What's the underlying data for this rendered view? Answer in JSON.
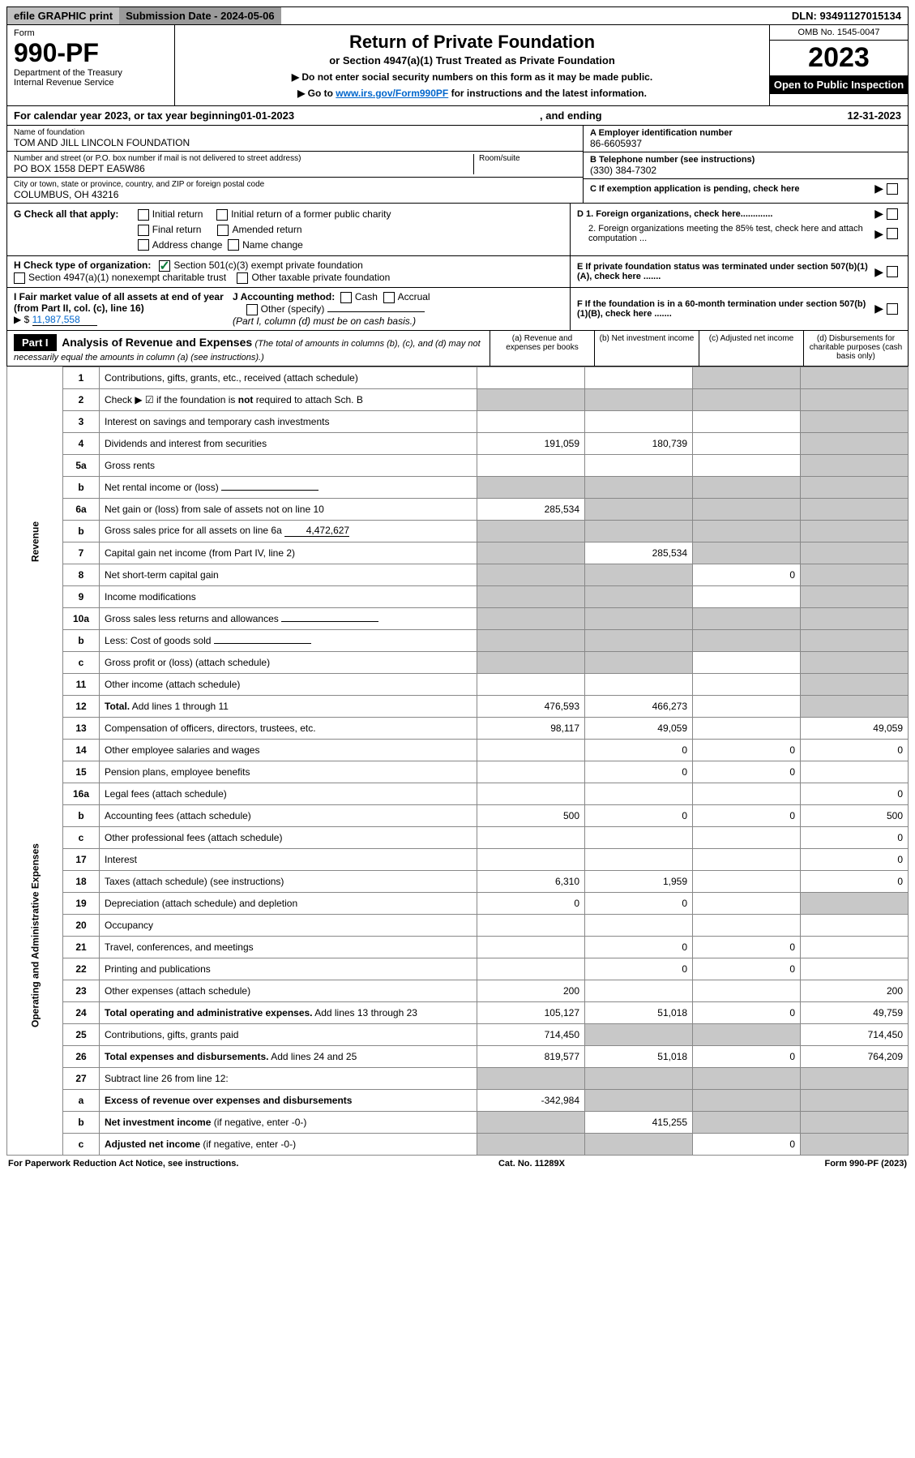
{
  "top": {
    "efile": "efile GRAPHIC print",
    "submission": "Submission Date - 2024-05-06",
    "dln": "DLN: 93491127015134"
  },
  "header": {
    "form_word": "Form",
    "form_num": "990-PF",
    "dept": "Department of the Treasury",
    "irs": "Internal Revenue Service",
    "title": "Return of Private Foundation",
    "subtitle": "or Section 4947(a)(1) Trust Treated as Private Foundation",
    "inst1": "▶ Do not enter social security numbers on this form as it may be made public.",
    "inst2a": "▶ Go to ",
    "inst2_link": "www.irs.gov/Form990PF",
    "inst2b": " for instructions and the latest information.",
    "omb": "OMB No. 1545-0047",
    "year": "2023",
    "open": "Open to Public Inspection"
  },
  "calendar": {
    "text_a": "For calendar year 2023, or tax year beginning ",
    "begin": "01-01-2023",
    "text_b": ", and ending ",
    "end": "12-31-2023"
  },
  "entity": {
    "name_label": "Name of foundation",
    "name": "TOM AND JILL LINCOLN FOUNDATION",
    "addr_label": "Number and street (or P.O. box number if mail is not delivered to street address)",
    "addr": "PO BOX 1558 DEPT EA5W86",
    "room_label": "Room/suite",
    "city_label": "City or town, state or province, country, and ZIP or foreign postal code",
    "city": "COLUMBUS, OH  43216",
    "A_label": "A Employer identification number",
    "A_val": "86-6605937",
    "B_label": "B Telephone number (see instructions)",
    "B_val": "(330) 384-7302",
    "C_label": "C If exemption application is pending, check here"
  },
  "G": {
    "label": "G Check all that apply:",
    "opts": [
      "Initial return",
      "Final return",
      "Address change",
      "Initial return of a former public charity",
      "Amended return",
      "Name change"
    ]
  },
  "D": {
    "d1": "D 1. Foreign organizations, check here.............",
    "d2": "2. Foreign organizations meeting the 85% test, check here and attach computation ..."
  },
  "H": {
    "label": "H Check type of organization:",
    "opt1": "Section 501(c)(3) exempt private foundation",
    "opt2": "Section 4947(a)(1) nonexempt charitable trust",
    "opt3": "Other taxable private foundation"
  },
  "E": "E  If private foundation status was terminated under section 507(b)(1)(A), check here .......",
  "I": {
    "label": "I Fair market value of all assets at end of year (from Part II, col. (c), line 16)",
    "prefix": "▶ $",
    "val": "11,987,558"
  },
  "J": {
    "label": "J Accounting method:",
    "cash": "Cash",
    "accrual": "Accrual",
    "other": "Other (specify)",
    "note": "(Part I, column (d) must be on cash basis.)"
  },
  "F": "F  If the foundation is in a 60-month termination under section 507(b)(1)(B), check here .......",
  "part1": {
    "tag": "Part I",
    "title": "Analysis of Revenue and Expenses",
    "note": "(The total of amounts in columns (b), (c), and (d) may not necessarily equal the amounts in column (a) (see instructions).)",
    "col_a": "(a)   Revenue and expenses per books",
    "col_b": "(b)   Net investment income",
    "col_c": "(c)   Adjusted net income",
    "col_d": "(d)   Disbursements for charitable purposes (cash basis only)"
  },
  "sides": {
    "revenue": "Revenue",
    "expenses": "Operating and Administrative Expenses"
  },
  "rows": [
    {
      "n": "1",
      "d": "Contributions, gifts, grants, etc., received (attach schedule)",
      "a": "",
      "b": "",
      "c": "s",
      "dd": "s"
    },
    {
      "n": "2",
      "d": "Check ▶ ☑ if the foundation is <b>not</b> required to attach Sch. B",
      "a": "s",
      "b": "s",
      "c": "s",
      "dd": "s",
      "checked": true
    },
    {
      "n": "3",
      "d": "Interest on savings and temporary cash investments",
      "a": "",
      "b": "",
      "c": "",
      "dd": "s"
    },
    {
      "n": "4",
      "d": "Dividends and interest from securities",
      "a": "191,059",
      "b": "180,739",
      "c": "",
      "dd": "s"
    },
    {
      "n": "5a",
      "d": "Gross rents",
      "a": "",
      "b": "",
      "c": "",
      "dd": "s"
    },
    {
      "n": "b",
      "d": "Net rental income or (loss)",
      "a": "s",
      "b": "s",
      "c": "s",
      "dd": "s",
      "inline_blank": true
    },
    {
      "n": "6a",
      "d": "Net gain or (loss) from sale of assets not on line 10",
      "a": "285,534",
      "b": "s",
      "c": "s",
      "dd": "s"
    },
    {
      "n": "b",
      "d": "Gross sales price for all assets on line 6a",
      "a": "s",
      "b": "s",
      "c": "s",
      "dd": "s",
      "inline_val": "4,472,627"
    },
    {
      "n": "7",
      "d": "Capital gain net income (from Part IV, line 2)",
      "a": "s",
      "b": "285,534",
      "c": "s",
      "dd": "s"
    },
    {
      "n": "8",
      "d": "Net short-term capital gain",
      "a": "s",
      "b": "s",
      "c": "0",
      "dd": "s"
    },
    {
      "n": "9",
      "d": "Income modifications",
      "a": "s",
      "b": "s",
      "c": "",
      "dd": "s"
    },
    {
      "n": "10a",
      "d": "Gross sales less returns and allowances",
      "a": "s",
      "b": "s",
      "c": "s",
      "dd": "s",
      "inline_blank": true
    },
    {
      "n": "b",
      "d": "Less: Cost of goods sold",
      "a": "s",
      "b": "s",
      "c": "s",
      "dd": "s",
      "inline_blank": true
    },
    {
      "n": "c",
      "d": "Gross profit or (loss) (attach schedule)",
      "a": "s",
      "b": "s",
      "c": "",
      "dd": "s"
    },
    {
      "n": "11",
      "d": "Other income (attach schedule)",
      "a": "",
      "b": "",
      "c": "",
      "dd": "s"
    },
    {
      "n": "12",
      "d": "<b>Total.</b> Add lines 1 through 11",
      "a": "476,593",
      "b": "466,273",
      "c": "",
      "dd": "s"
    }
  ],
  "exp_rows": [
    {
      "n": "13",
      "d": "Compensation of officers, directors, trustees, etc.",
      "a": "98,117",
      "b": "49,059",
      "c": "",
      "dd": "49,059"
    },
    {
      "n": "14",
      "d": "Other employee salaries and wages",
      "a": "",
      "b": "0",
      "c": "0",
      "dd": "0"
    },
    {
      "n": "15",
      "d": "Pension plans, employee benefits",
      "a": "",
      "b": "0",
      "c": "0",
      "dd": ""
    },
    {
      "n": "16a",
      "d": "Legal fees (attach schedule)",
      "a": "",
      "b": "",
      "c": "",
      "dd": "0"
    },
    {
      "n": "b",
      "d": "Accounting fees (attach schedule)",
      "a": "500",
      "b": "0",
      "c": "0",
      "dd": "500"
    },
    {
      "n": "c",
      "d": "Other professional fees (attach schedule)",
      "a": "",
      "b": "",
      "c": "",
      "dd": "0"
    },
    {
      "n": "17",
      "d": "Interest",
      "a": "",
      "b": "",
      "c": "",
      "dd": "0"
    },
    {
      "n": "18",
      "d": "Taxes (attach schedule) (see instructions)",
      "a": "6,310",
      "b": "1,959",
      "c": "",
      "dd": "0"
    },
    {
      "n": "19",
      "d": "Depreciation (attach schedule) and depletion",
      "a": "0",
      "b": "0",
      "c": "",
      "dd": "s"
    },
    {
      "n": "20",
      "d": "Occupancy",
      "a": "",
      "b": "",
      "c": "",
      "dd": ""
    },
    {
      "n": "21",
      "d": "Travel, conferences, and meetings",
      "a": "",
      "b": "0",
      "c": "0",
      "dd": ""
    },
    {
      "n": "22",
      "d": "Printing and publications",
      "a": "",
      "b": "0",
      "c": "0",
      "dd": ""
    },
    {
      "n": "23",
      "d": "Other expenses (attach schedule)",
      "a": "200",
      "b": "",
      "c": "",
      "dd": "200"
    },
    {
      "n": "24",
      "d": "<b>Total operating and administrative expenses.</b> Add lines 13 through 23",
      "a": "105,127",
      "b": "51,018",
      "c": "0",
      "dd": "49,759"
    },
    {
      "n": "25",
      "d": "Contributions, gifts, grants paid",
      "a": "714,450",
      "b": "s",
      "c": "s",
      "dd": "714,450"
    },
    {
      "n": "26",
      "d": "<b>Total expenses and disbursements.</b> Add lines 24 and 25",
      "a": "819,577",
      "b": "51,018",
      "c": "0",
      "dd": "764,209"
    },
    {
      "n": "27",
      "d": "Subtract line 26 from line 12:",
      "a": "s",
      "b": "s",
      "c": "s",
      "dd": "s"
    },
    {
      "n": "a",
      "d": "<b>Excess of revenue over expenses and disbursements</b>",
      "a": "-342,984",
      "b": "s",
      "c": "s",
      "dd": "s"
    },
    {
      "n": "b",
      "d": "<b>Net investment income</b> (if negative, enter -0-)",
      "a": "s",
      "b": "415,255",
      "c": "s",
      "dd": "s"
    },
    {
      "n": "c",
      "d": "<b>Adjusted net income</b> (if negative, enter -0-)",
      "a": "s",
      "b": "s",
      "c": "0",
      "dd": "s"
    }
  ],
  "footer": {
    "left": "For Paperwork Reduction Act Notice, see instructions.",
    "mid": "Cat. No. 11289X",
    "right": "Form 990-PF (2023)"
  }
}
